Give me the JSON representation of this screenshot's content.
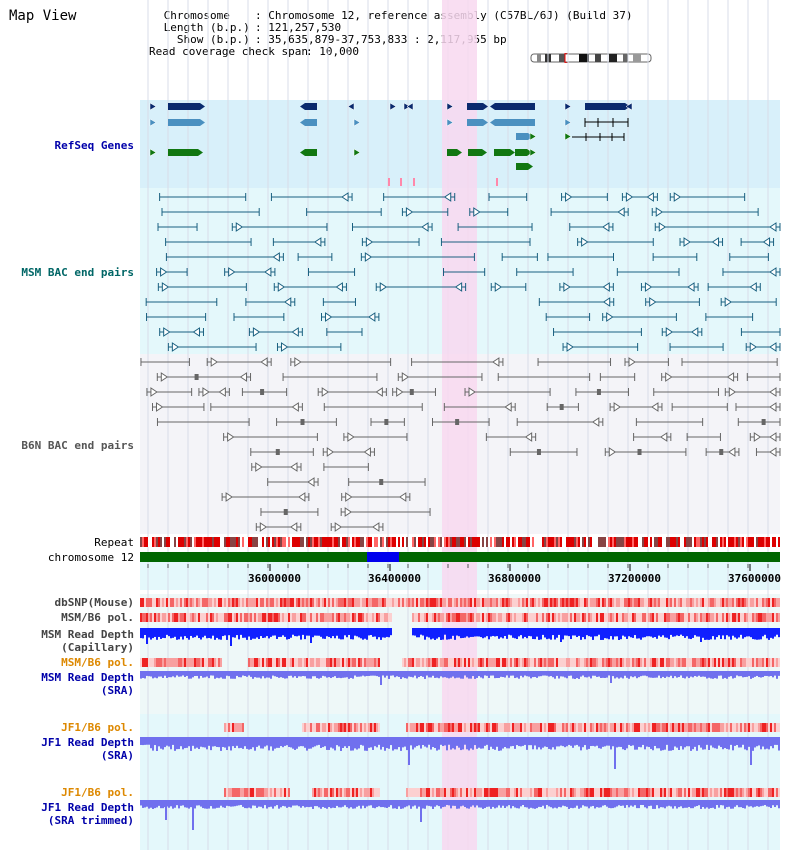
{
  "title": "Map View",
  "info": [
    {
      "label": " Chromosome",
      "value": ": Chromosome 12, reference assembly (C57BL/6J) (Build 37)"
    },
    {
      "label": " Length (b.p.)",
      "value": ": 121,257,530"
    },
    {
      "label": "   Show (b.p.)",
      "value": ": 35,635,879-37,753,833 : 2,117,955 bp"
    },
    {
      "label": "Read coverage check span",
      "value": ": 10,000"
    }
  ],
  "tracks": {
    "refseq": "RefSeq Genes",
    "msm_bac": "MSM BAC end pairs",
    "b6n_bac": "B6N BAC end pairs",
    "repeat": "Repeat",
    "chromosome": "chromosome 12",
    "dbsnp": "dbSNP(Mouse)",
    "msm_b6_pol_1": "MSM/B6 pol.",
    "msm_read_depth_cap": "MSM Read Depth\n(Capillary)",
    "msm_b6_pol_2": "MSM/B6 pol.",
    "msm_read_depth_sra": "MSM Read Depth\n(SRA)",
    "jf1_b6_pol_1": "JF1/B6 pol.",
    "jf1_read_depth_sra": "JF1 Read Depth\n(SRA)",
    "jf1_b6_pol_2": "JF1/B6 pol.",
    "jf1_read_depth_trim": "JF1 Read Depth\n(SRA trimmed)"
  },
  "axis_ticks": [
    "36000000",
    "36400000",
    "36800000",
    "37200000",
    "37600000"
  ],
  "colors": {
    "gene_dark": "#0a2a6e",
    "gene_mid": "#4a90c0",
    "gene_green": "#117711",
    "bac_msm": "#1a6080",
    "bac_b6n": "#666666",
    "highlight": "#f8d8f0",
    "snp": "#ff4444",
    "depth_dark": "#1020ff",
    "depth_light": "#7070ee",
    "label_blue": "#0000aa",
    "label_teal": "#006666",
    "label_orange": "#dd8800",
    "chromosome_green": "#006600"
  }
}
